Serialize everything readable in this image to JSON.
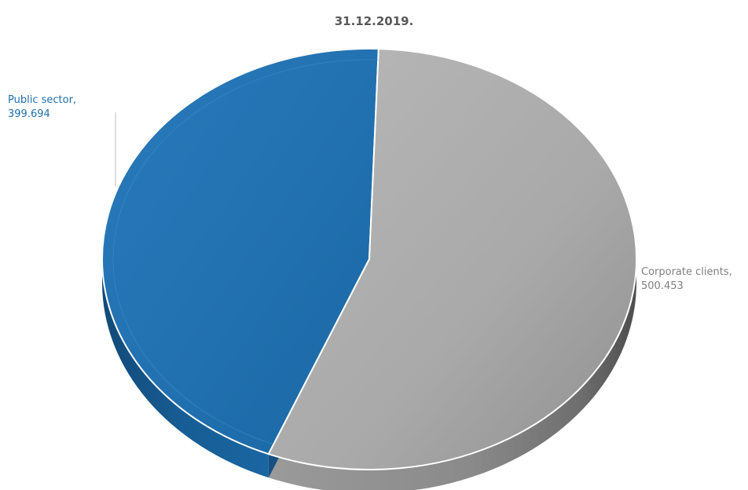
{
  "chart_data": {
    "type": "pie",
    "title": "31.12.2019.",
    "slices": [
      {
        "name": "Public sector",
        "value": 399.694,
        "value_label": "399.694",
        "color": "#1f6eab"
      },
      {
        "name": "Corporate clients",
        "value": 500.453,
        "value_label": "500.453",
        "color": "#a6a6a6"
      }
    ]
  }
}
